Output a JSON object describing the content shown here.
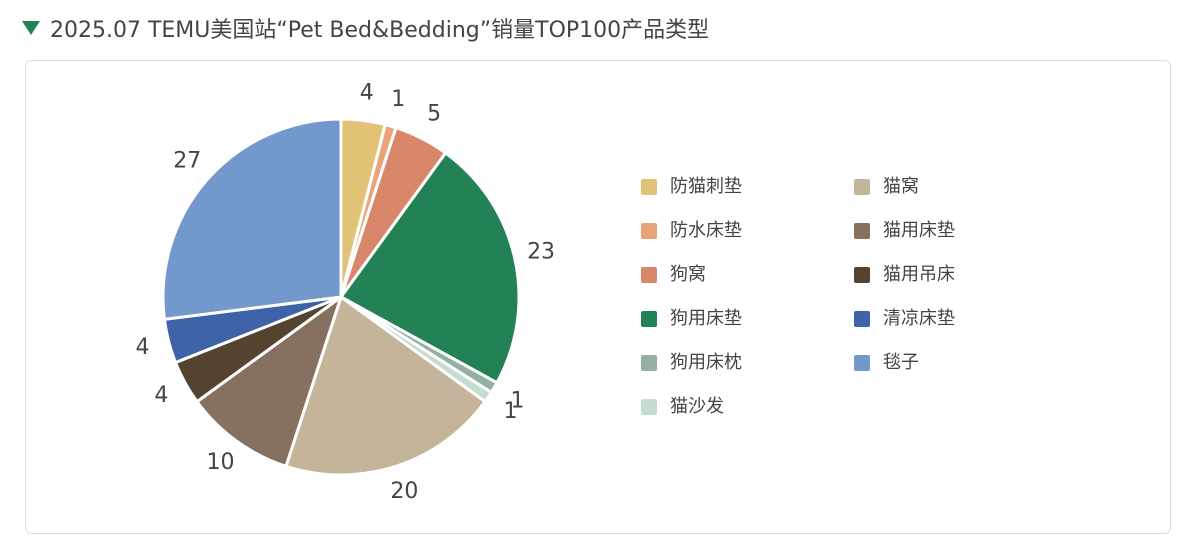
{
  "chart_data": {
    "type": "pie",
    "title": "2025.07 TEMU美国站“Pet Bed&Bedding”销量TOP100产品类型",
    "categories": [
      "防猫刺垫",
      "防水床垫",
      "狗窝",
      "狗用床垫",
      "狗用床枕",
      "猫沙发",
      "猫窝",
      "猫用床垫",
      "猫用吊床",
      "清凉床垫",
      "毯子"
    ],
    "values": [
      4,
      1,
      5,
      23,
      1,
      1,
      20,
      10,
      4,
      4,
      27
    ],
    "colors": [
      "#e2c275",
      "#e9a47a",
      "#d9876a",
      "#228155",
      "#93b0a0",
      "#c5ddd0",
      "#c4b49a",
      "#86705f",
      "#54432f",
      "#3f63a8",
      "#7398cc"
    ]
  }
}
